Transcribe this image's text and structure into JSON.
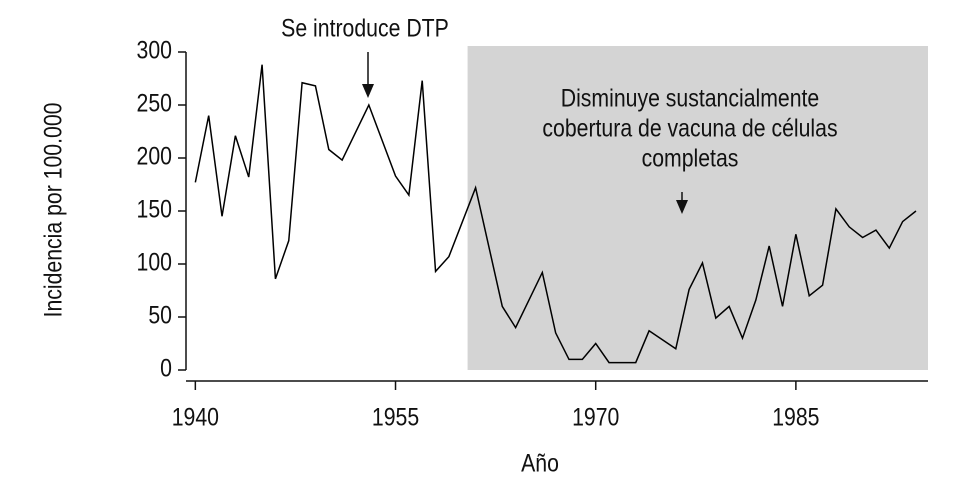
{
  "chart_data": {
    "type": "line",
    "y_label": "Incidencia por 100.000",
    "x_label": "Año",
    "x": [
      1940,
      1941,
      1942,
      1943,
      1944,
      1945,
      1946,
      1947,
      1948,
      1949,
      1950,
      1951,
      1953,
      1955,
      1956,
      1957,
      1958,
      1959,
      1961,
      1963,
      1964,
      1966,
      1967,
      1968,
      1969,
      1970,
      1971,
      1973,
      1974,
      1976,
      1977,
      1978,
      1979,
      1980,
      1981,
      1982,
      1983,
      1984,
      1985,
      1986,
      1987,
      1988,
      1989,
      1990,
      1991,
      1992,
      1993,
      1994
    ],
    "values": [
      177,
      240,
      145,
      221,
      182,
      288,
      86,
      122,
      271,
      268,
      208,
      198,
      250,
      183,
      165,
      273,
      93,
      107,
      172,
      60,
      40,
      92,
      35,
      10,
      10,
      25,
      7,
      7,
      37,
      20,
      76,
      101,
      49,
      60,
      30,
      66,
      117,
      60,
      128,
      70,
      80,
      152,
      135,
      125,
      132,
      115,
      140,
      150
    ],
    "color": "#000000",
    "xlim": [
      1939.3,
      1994.9
    ],
    "xticks": [
      1940,
      1955,
      1970,
      1985
    ],
    "ylim": [
      0,
      300
    ],
    "yticks": [
      0,
      50,
      100,
      150,
      200,
      250,
      300
    ],
    "shaded_region": {
      "xlim": [
        1960.4,
        1994.9
      ],
      "color": "#d4d4d4"
    },
    "annotations": [
      {
        "lines": [
          "Se introduce DTP"
        ]
      },
      {
        "lines": [
          "Disminuye sustancialmente",
          "cobertura de vacuna de células",
          "completas"
        ]
      }
    ]
  }
}
